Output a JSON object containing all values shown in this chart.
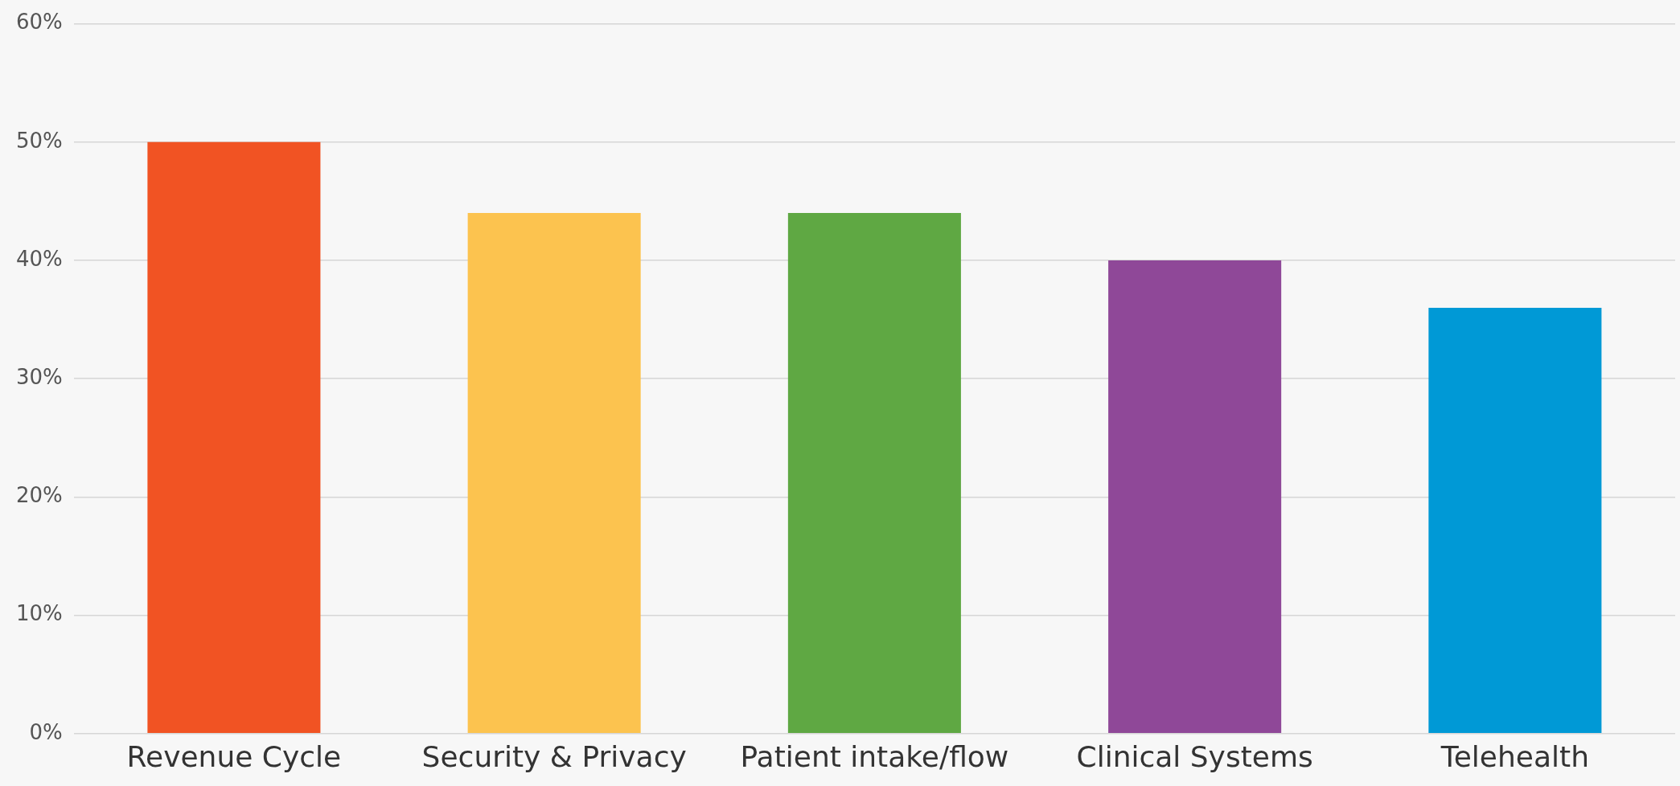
{
  "chart_data": {
    "type": "bar",
    "categories": [
      "Revenue Cycle",
      "Security & Privacy",
      "Patient intake/flow",
      "Clinical Systems",
      "Telehealth"
    ],
    "values": [
      50,
      44,
      44,
      40,
      36
    ],
    "colors": [
      "#f15323",
      "#fcc34f",
      "#5fa843",
      "#8f4898",
      "#0099d6"
    ],
    "ylim": [
      0,
      60
    ],
    "yticks": [
      {
        "value": 0,
        "label": "0%"
      },
      {
        "value": 10,
        "label": "10%"
      },
      {
        "value": 20,
        "label": "20%"
      },
      {
        "value": 30,
        "label": "30%"
      },
      {
        "value": 40,
        "label": "40%"
      },
      {
        "value": 50,
        "label": "50%"
      },
      {
        "value": 60,
        "label": "60%"
      }
    ],
    "grid": "y",
    "legend": false
  }
}
